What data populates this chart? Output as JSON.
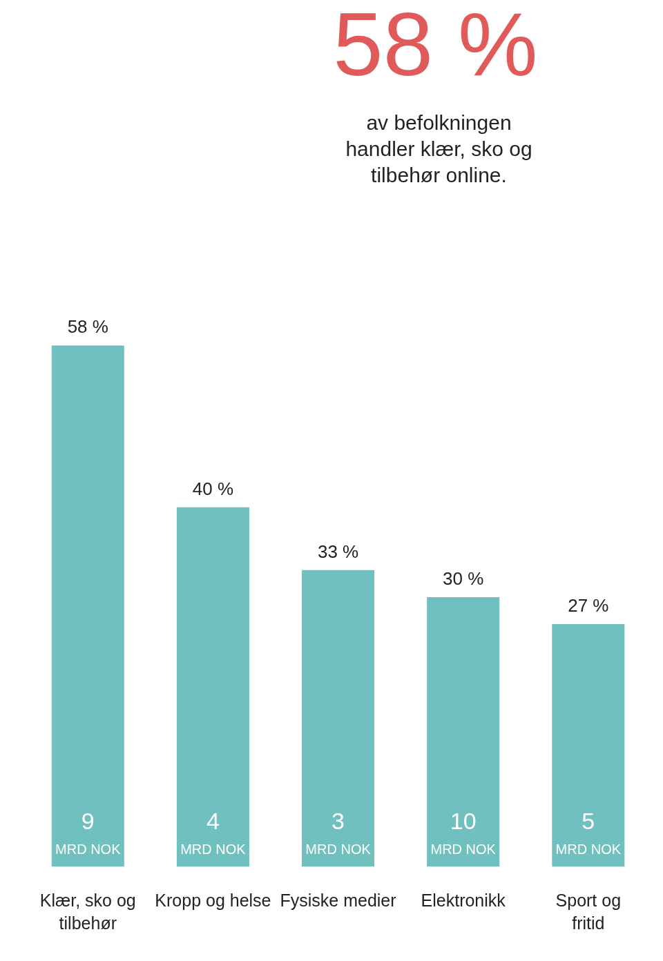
{
  "chart_data": {
    "type": "bar",
    "categories": [
      "Klær, sko og tilbehør",
      "Kropp og helse",
      "Fysiske medier",
      "Elektronikk",
      "Sport og fritid"
    ],
    "values": [
      58,
      40,
      33,
      30,
      27
    ],
    "value_labels": [
      "58 %",
      "40 %",
      "33 %",
      "30 %",
      "27 %"
    ],
    "color": "#6fc0bf",
    "grid": false,
    "annotations": [
      "58 %",
      "av befolkningen handler klær, sko og tilbehør online.",
      {
        "text": "9\nMRD NOK",
        "x": "Klær, sko og tilbehør",
        "y": 0
      },
      {
        "text": "4\nMRD NOK",
        "x": "Kropp og helse",
        "y": 0
      },
      {
        "text": "3\nMRD NOK",
        "x": "Fysiske medier",
        "y": 0
      },
      {
        "text": "10\nMRD NOK",
        "x": "Elektronikk",
        "y": 0
      },
      {
        "text": "5\nMRD NOK",
        "x": "Sport og fritid",
        "y": 0
      }
    ]
  }
}
